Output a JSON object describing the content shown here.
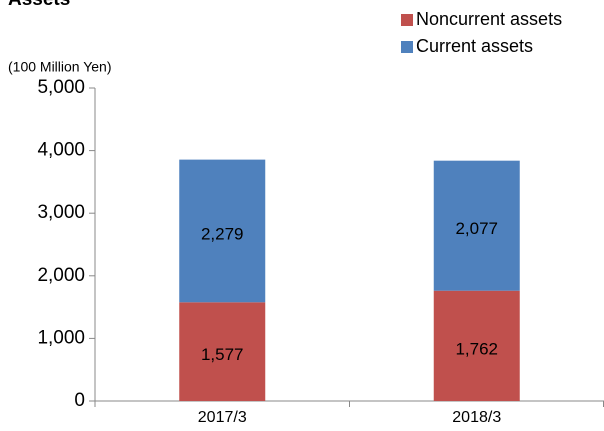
{
  "chart_data": {
    "type": "stacked_bar",
    "title": "Assets",
    "y_axis_label": "(100 Million Yen)",
    "categories": [
      "2017/3",
      "2018/3"
    ],
    "series": [
      {
        "name": "Noncurrent assets",
        "color": "#c0504d",
        "values": [
          1577,
          1762
        ],
        "value_labels": [
          "1,577",
          "1,762"
        ]
      },
      {
        "name": "Current assets",
        "color": "#4f81bd",
        "values": [
          2279,
          2077
        ],
        "value_labels": [
          "2,279",
          "2,077"
        ]
      }
    ],
    "ylim": [
      0,
      5000
    ],
    "yticks": [
      0,
      {
        "value": 1000,
        "label": "1,000"
      },
      {
        "value": 2000,
        "label": "2,000"
      },
      {
        "value": 3000,
        "label": "3,000"
      },
      {
        "value": 4000,
        "label": "4,000"
      },
      {
        "value": 5000,
        "label": "5,000"
      }
    ],
    "legend": "top-right"
  }
}
